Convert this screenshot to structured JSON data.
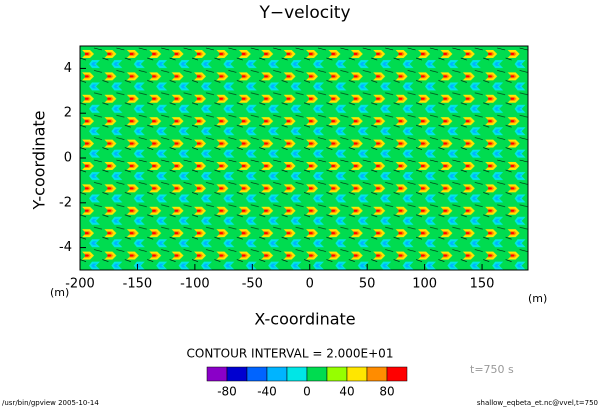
{
  "chart_data": {
    "type": "contour",
    "title": "Y−velocity",
    "xlabel": "X-coordinate",
    "ylabel": "Y-coordinate",
    "xunit": "(m)",
    "yunit": "(m)",
    "xlim": [
      -200,
      190
    ],
    "xticks": [
      -200,
      -150,
      -100,
      -50,
      0,
      50,
      100,
      150
    ],
    "ylim": [
      -5,
      5
    ],
    "yticks": [
      -4,
      -2,
      0,
      2,
      4
    ],
    "contour_interval": "CONTOUR INTERVAL = 2.000E+01",
    "time": "t=750 s",
    "colorbar": {
      "levels": [
        -80,
        -60,
        -40,
        -20,
        0,
        20,
        40,
        60,
        80
      ],
      "ticks": [
        -80,
        -40,
        0,
        40,
        80
      ],
      "colors": [
        "#8a00c8",
        "#0000d0",
        "#0064ff",
        "#00b4ff",
        "#00e6e6",
        "#00dc50",
        "#96ff00",
        "#ffe600",
        "#ff8c00",
        "#ff0000"
      ]
    },
    "footer_left": "/usr/bin/gpview  2005-10-14",
    "footer_right": "shallow_eqbeta_et.nc@vvel,t=750"
  }
}
